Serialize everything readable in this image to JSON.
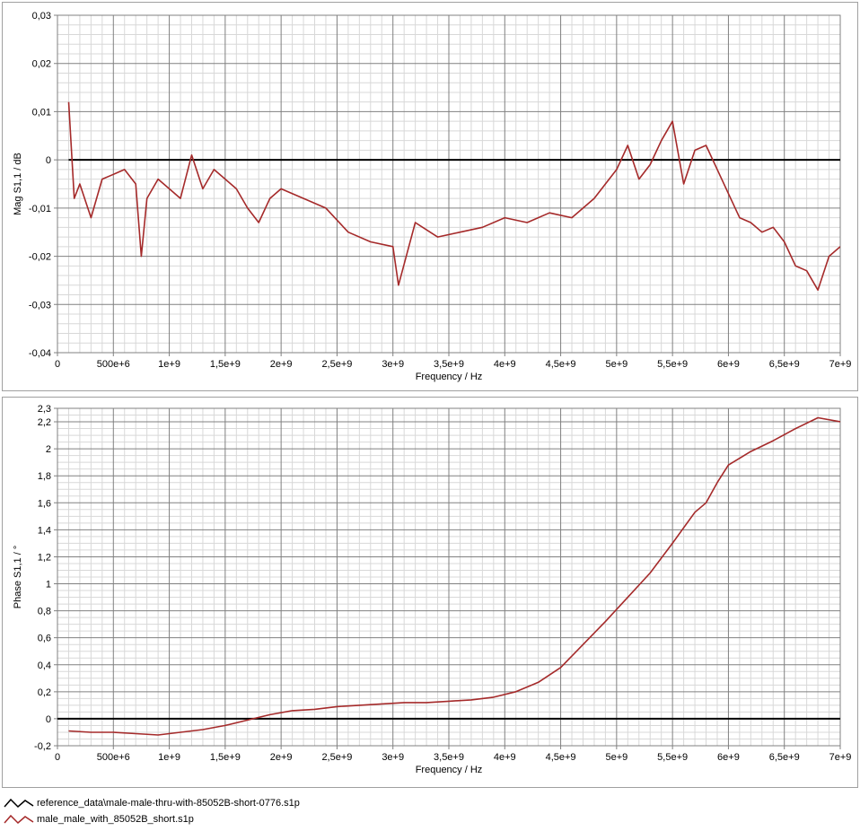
{
  "colors": {
    "reference": "#000000",
    "measured": "#A52A2A",
    "grid_major": "#808080",
    "grid_minor": "#d8d8d8"
  },
  "legend": [
    {
      "label": "reference_data\\male-male-thru-with-85052B-short-0776.s1p",
      "color": "#000000"
    },
    {
      "label": "male_male_with_85052B_short.s1p",
      "color": "#A52A2A"
    }
  ],
  "chart_data": [
    {
      "type": "line",
      "ylabel": "Mag S1,1 / dB",
      "xlabel": "Frequency / Hz",
      "xlim": [
        0,
        7000000000
      ],
      "ylim": [
        -0.04,
        0.03
      ],
      "x_ticks": [
        0,
        500000000,
        1000000000,
        1500000000,
        2000000000,
        2500000000,
        3000000000,
        3500000000,
        4000000000,
        4500000000,
        5000000000,
        5500000000,
        6000000000,
        6500000000,
        7000000000
      ],
      "x_tick_labels": [
        "0",
        "500e+6",
        "1e+9",
        "1,5e+9",
        "2e+9",
        "2,5e+9",
        "3e+9",
        "3,5e+9",
        "4e+9",
        "4,5e+9",
        "5e+9",
        "5,5e+9",
        "6e+9",
        "6,5e+9",
        "7e+9"
      ],
      "y_ticks": [
        -0.04,
        -0.03,
        -0.02,
        -0.01,
        0,
        0.01,
        0.02,
        0.03
      ],
      "y_tick_labels": [
        "-0,04",
        "-0,03",
        "-0,02",
        "-0,01",
        "0",
        "0,01",
        "0,02",
        "0,03"
      ],
      "grid": true,
      "series": [
        {
          "name": "reference_data\\male-male-thru-with-85052B-short-0776.s1p",
          "x": [
            100000000,
            7000000000
          ],
          "y": [
            0,
            0
          ]
        },
        {
          "name": "male_male_with_85052B_short.s1p",
          "x": [
            100000000,
            150000000,
            200000000,
            300000000,
            400000000,
            500000000,
            600000000,
            700000000,
            750000000,
            800000000,
            900000000,
            1000000000,
            1100000000,
            1200000000,
            1300000000,
            1400000000,
            1500000000,
            1600000000,
            1700000000,
            1800000000,
            1900000000,
            2000000000,
            2200000000,
            2400000000,
            2600000000,
            2800000000,
            3000000000,
            3050000000,
            3200000000,
            3400000000,
            3600000000,
            3800000000,
            4000000000,
            4200000000,
            4400000000,
            4600000000,
            4800000000,
            5000000000,
            5100000000,
            5200000000,
            5300000000,
            5400000000,
            5500000000,
            5600000000,
            5700000000,
            5800000000,
            5900000000,
            6000000000,
            6100000000,
            6200000000,
            6300000000,
            6400000000,
            6500000000,
            6600000000,
            6700000000,
            6800000000,
            6900000000,
            7000000000
          ],
          "y": [
            0.012,
            -0.008,
            -0.005,
            -0.012,
            -0.004,
            -0.003,
            -0.002,
            -0.005,
            -0.02,
            -0.008,
            -0.004,
            -0.006,
            -0.008,
            0.001,
            -0.006,
            -0.002,
            -0.004,
            -0.006,
            -0.01,
            -0.013,
            -0.008,
            -0.006,
            -0.008,
            -0.01,
            -0.015,
            -0.017,
            -0.018,
            -0.026,
            -0.013,
            -0.016,
            -0.015,
            -0.014,
            -0.012,
            -0.013,
            -0.011,
            -0.012,
            -0.008,
            -0.002,
            0.003,
            -0.004,
            -0.001,
            0.004,
            0.008,
            -0.005,
            0.002,
            0.003,
            -0.002,
            -0.007,
            -0.012,
            -0.013,
            -0.015,
            -0.014,
            -0.017,
            -0.022,
            -0.023,
            -0.027,
            -0.02,
            -0.018
          ]
        }
      ]
    },
    {
      "type": "line",
      "ylabel": "Phase S1,1 / °",
      "xlabel": "Frequency / Hz",
      "xlim": [
        0,
        7000000000
      ],
      "ylim": [
        -0.2,
        2.3
      ],
      "x_ticks": [
        0,
        500000000,
        1000000000,
        1500000000,
        2000000000,
        2500000000,
        3000000000,
        3500000000,
        4000000000,
        4500000000,
        5000000000,
        5500000000,
        6000000000,
        6500000000,
        7000000000
      ],
      "x_tick_labels": [
        "0",
        "500e+6",
        "1e+9",
        "1,5e+9",
        "2e+9",
        "2,5e+9",
        "3e+9",
        "3,5e+9",
        "4e+9",
        "4,5e+9",
        "5e+9",
        "5,5e+9",
        "6e+9",
        "6,5e+9",
        "7e+9"
      ],
      "y_ticks": [
        -0.2,
        0,
        0.2,
        0.4,
        0.6,
        0.8,
        1,
        1.2,
        1.4,
        1.6,
        1.8,
        2,
        2.2,
        2.3
      ],
      "y_tick_labels": [
        "-0,2",
        "0",
        "0,2",
        "0,4",
        "0,6",
        "0,8",
        "1",
        "1,2",
        "1,4",
        "1,6",
        "1,8",
        "2",
        "2,2",
        "2,3"
      ],
      "grid": true,
      "series": [
        {
          "name": "reference_data\\male-male-thru-with-85052B-short-0776.s1p",
          "x": [
            0,
            7000000000
          ],
          "y": [
            0,
            0
          ]
        },
        {
          "name": "male_male_with_85052B_short.s1p",
          "x": [
            100000000,
            300000000,
            500000000,
            700000000,
            900000000,
            1100000000,
            1300000000,
            1500000000,
            1700000000,
            1900000000,
            2100000000,
            2300000000,
            2500000000,
            2700000000,
            2900000000,
            3100000000,
            3300000000,
            3500000000,
            3700000000,
            3900000000,
            4100000000,
            4300000000,
            4500000000,
            4700000000,
            4900000000,
            5100000000,
            5300000000,
            5500000000,
            5700000000,
            5800000000,
            5900000000,
            6000000000,
            6200000000,
            6400000000,
            6600000000,
            6800000000,
            7000000000
          ],
          "y": [
            -0.09,
            -0.1,
            -0.1,
            -0.11,
            -0.12,
            -0.1,
            -0.08,
            -0.05,
            -0.01,
            0.03,
            0.06,
            0.07,
            0.09,
            0.1,
            0.11,
            0.12,
            0.12,
            0.13,
            0.14,
            0.16,
            0.2,
            0.27,
            0.38,
            0.55,
            0.72,
            0.9,
            1.08,
            1.3,
            1.53,
            1.6,
            1.75,
            1.88,
            1.98,
            2.06,
            2.15,
            2.23,
            2.2
          ]
        }
      ]
    }
  ]
}
